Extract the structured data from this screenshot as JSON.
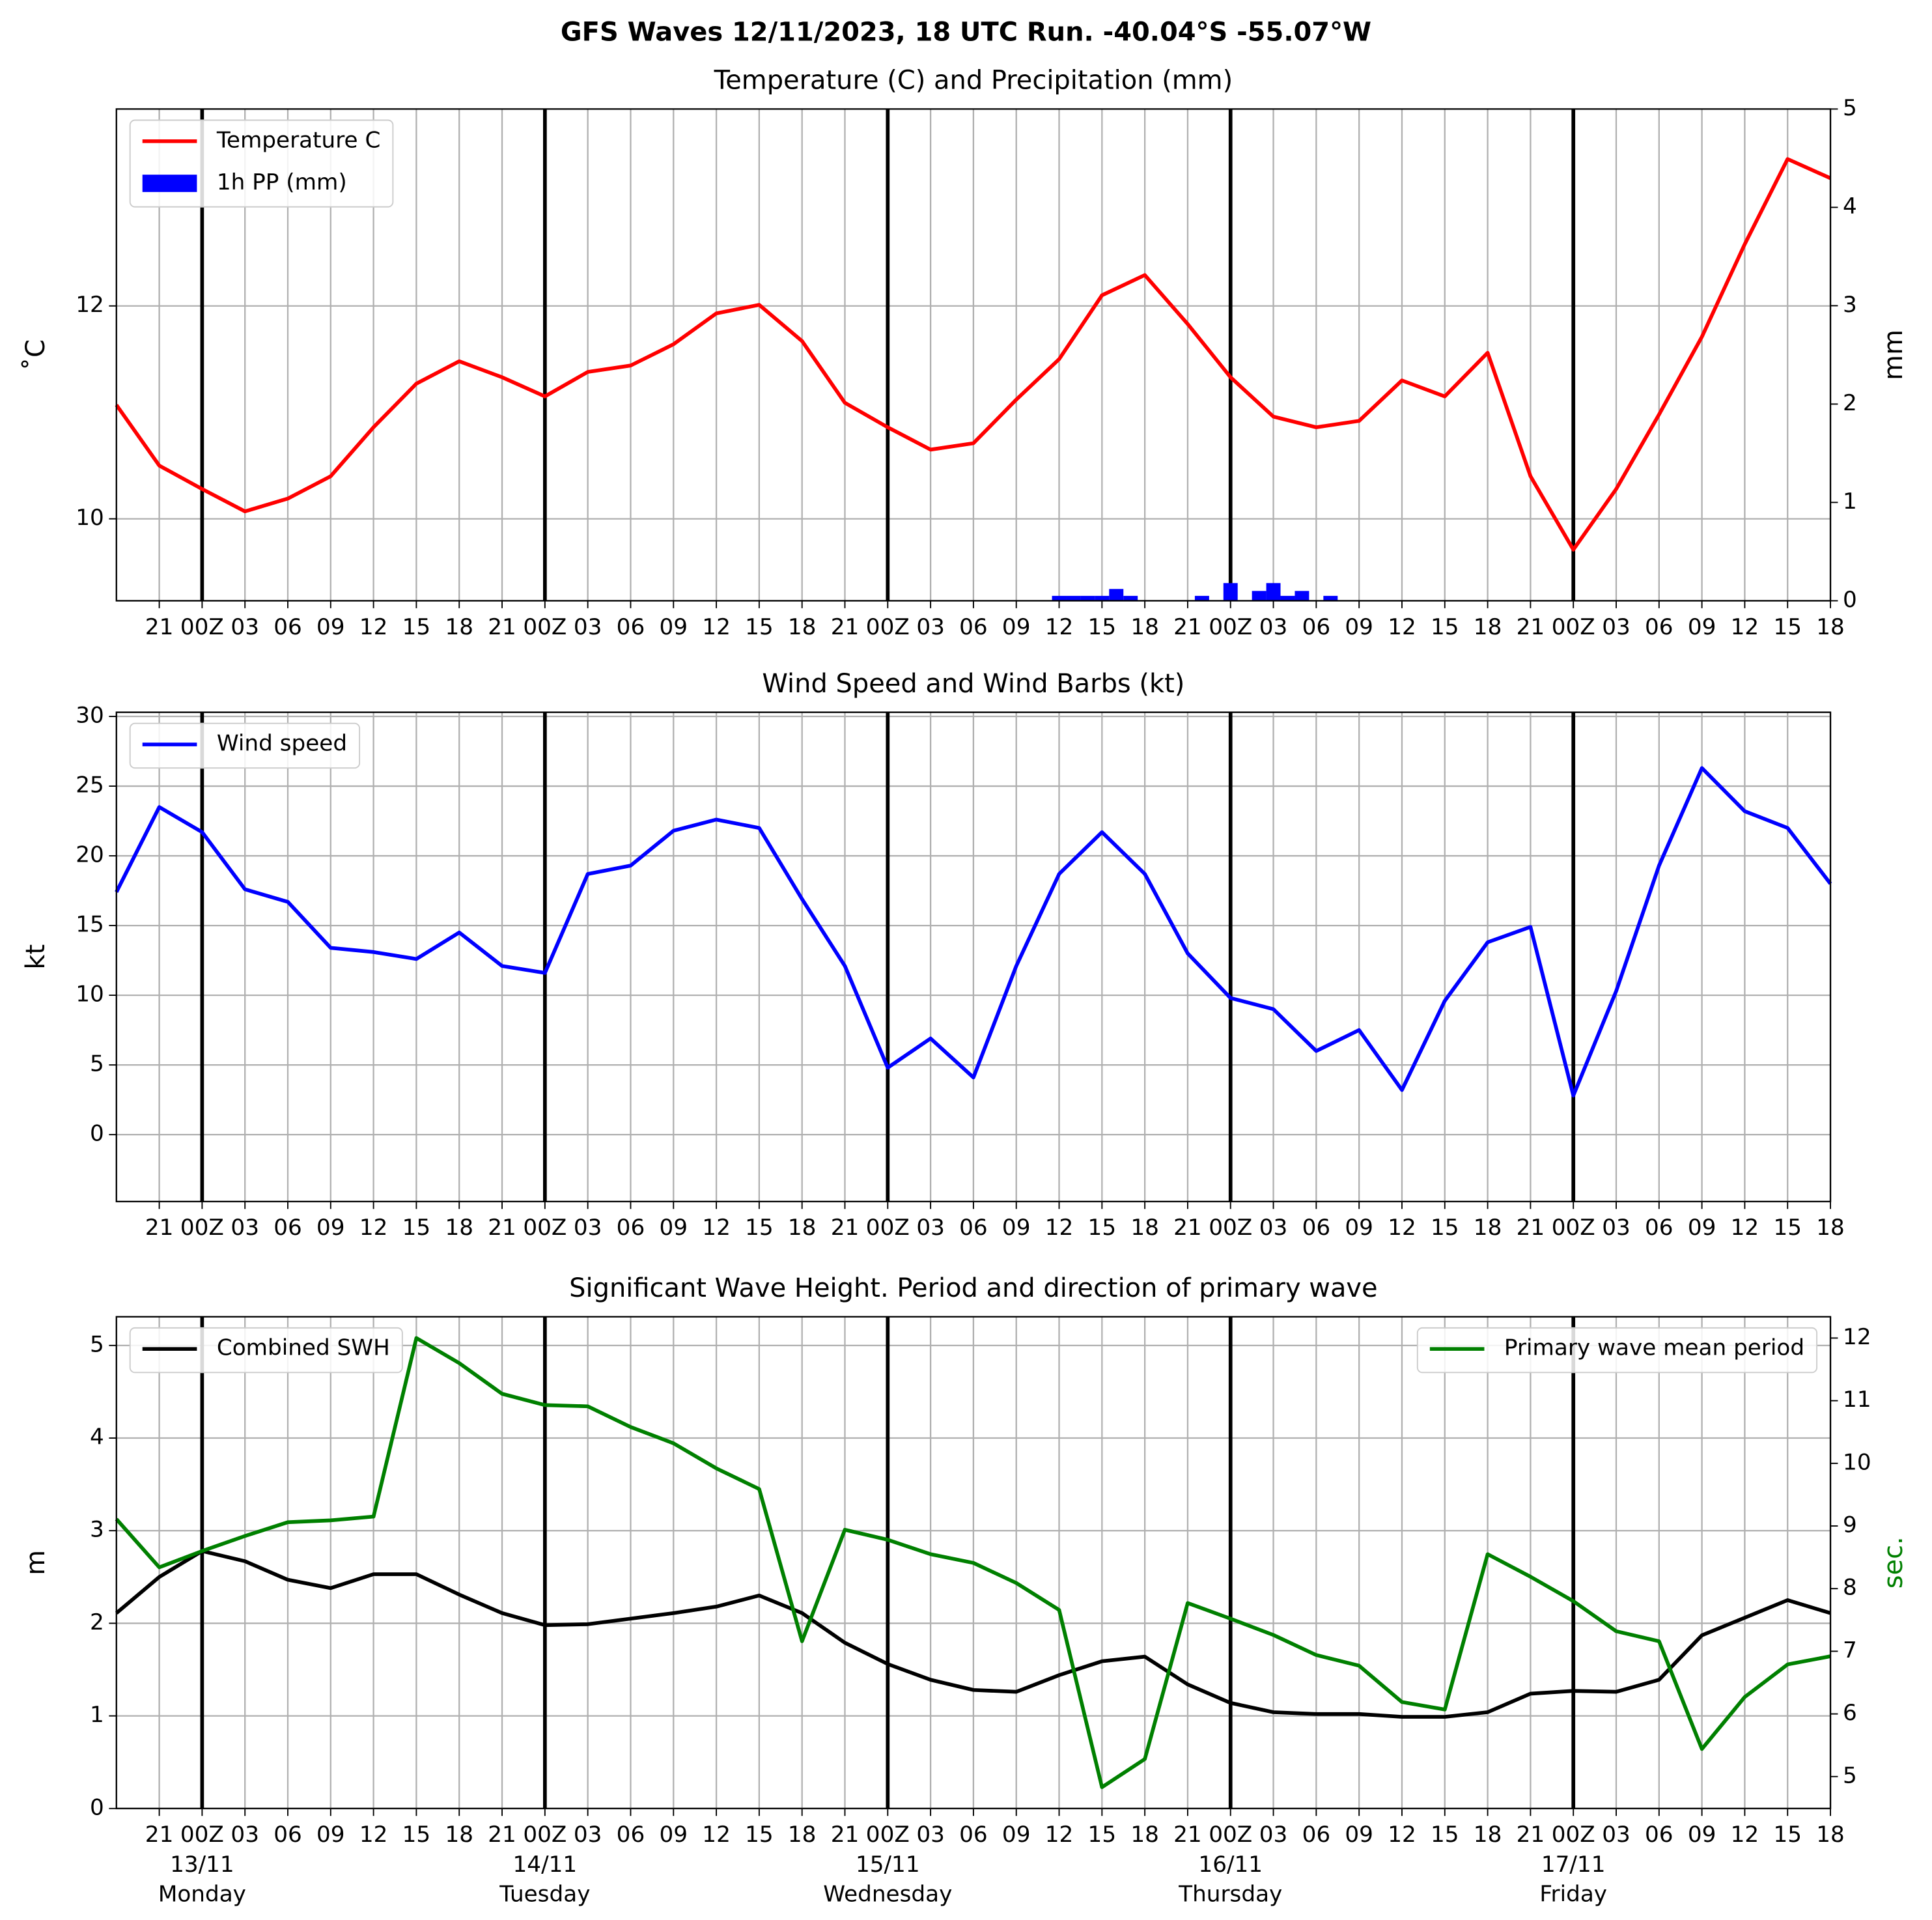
{
  "suptitle": "GFS Waves 12/11/2023, 18 UTC Run. -40.04°S -55.07°W",
  "chart_data": [
    {
      "type": "line",
      "title": "Temperature (C) and Precipitation (mm)",
      "ylabel": "˚C",
      "y2label": "mm",
      "xlim": [
        0,
        120
      ],
      "ylim": [
        9.23,
        13.85
      ],
      "yticks": [
        10,
        12
      ],
      "y2lim": [
        0,
        5
      ],
      "y2ticks": [
        0,
        1,
        2,
        3,
        4,
        5
      ],
      "grid": true,
      "legend": "upper left",
      "xticks": [
        {
          "value": 3,
          "label": "21"
        },
        {
          "value": 6,
          "label": "00Z"
        },
        {
          "value": 9,
          "label": "03"
        },
        {
          "value": 12,
          "label": "06"
        },
        {
          "value": 15,
          "label": "09"
        },
        {
          "value": 18,
          "label": "12"
        },
        {
          "value": 21,
          "label": "15"
        },
        {
          "value": 24,
          "label": "18"
        },
        {
          "value": 27,
          "label": "21"
        },
        {
          "value": 30,
          "label": "00Z"
        },
        {
          "value": 33,
          "label": "03"
        },
        {
          "value": 36,
          "label": "06"
        },
        {
          "value": 39,
          "label": "09"
        },
        {
          "value": 42,
          "label": "12"
        },
        {
          "value": 45,
          "label": "15"
        },
        {
          "value": 48,
          "label": "18"
        },
        {
          "value": 51,
          "label": "21"
        },
        {
          "value": 54,
          "label": "00Z"
        },
        {
          "value": 57,
          "label": "03"
        },
        {
          "value": 60,
          "label": "06"
        },
        {
          "value": 63,
          "label": "09"
        },
        {
          "value": 66,
          "label": "12"
        },
        {
          "value": 69,
          "label": "15"
        },
        {
          "value": 72,
          "label": "18"
        },
        {
          "value": 75,
          "label": "21"
        },
        {
          "value": 78,
          "label": "00Z"
        },
        {
          "value": 81,
          "label": "03"
        },
        {
          "value": 84,
          "label": "06"
        },
        {
          "value": 87,
          "label": "09"
        },
        {
          "value": 90,
          "label": "12"
        },
        {
          "value": 93,
          "label": "15"
        },
        {
          "value": 96,
          "label": "18"
        },
        {
          "value": 99,
          "label": "21"
        },
        {
          "value": 102,
          "label": "00Z"
        },
        {
          "value": 105,
          "label": "03"
        },
        {
          "value": 108,
          "label": "06"
        },
        {
          "value": 111,
          "label": "09"
        },
        {
          "value": 114,
          "label": "12"
        },
        {
          "value": 117,
          "label": "15"
        },
        {
          "value": 120,
          "label": "18"
        }
      ],
      "x": [
        0,
        3,
        6,
        9,
        12,
        15,
        18,
        21,
        24,
        27,
        30,
        33,
        36,
        39,
        42,
        45,
        48,
        51,
        54,
        57,
        60,
        63,
        66,
        69,
        72,
        75,
        78,
        81,
        84,
        87,
        90,
        93,
        96,
        99,
        102,
        105,
        108,
        111,
        114,
        117,
        120
      ],
      "series": [
        {
          "name": "Temperature C",
          "color": "#ff0000",
          "values": [
            11.07,
            10.5,
            10.28,
            10.07,
            10.19,
            10.4,
            10.86,
            11.27,
            11.48,
            11.33,
            11.15,
            11.38,
            11.44,
            11.64,
            11.93,
            12.01,
            11.67,
            11.09,
            10.86,
            10.65,
            10.71,
            11.12,
            11.5,
            12.1,
            12.29,
            11.83,
            11.33,
            10.96,
            10.86,
            10.92,
            11.3,
            11.15,
            11.56,
            10.4,
            9.71,
            10.28,
            10.98,
            11.71,
            12.58,
            13.38,
            13.2
          ]
        },
        {
          "name": "1h PP (mm)",
          "color": "#0000ff",
          "type": "bar",
          "axis": "y2",
          "x": [
            66,
            67,
            68,
            69,
            70,
            71,
            76,
            78,
            80,
            81,
            82,
            83,
            85
          ],
          "values": [
            0.05,
            0.05,
            0.05,
            0.05,
            0.12,
            0.05,
            0.05,
            0.18,
            0.1,
            0.18,
            0.05,
            0.1,
            0.05
          ]
        }
      ]
    },
    {
      "type": "line",
      "title": "Wind Speed and Wind Barbs (kt)",
      "ylabel": "kt",
      "xlim": [
        0,
        120
      ],
      "ylim": [
        -4.8,
        30.3
      ],
      "yticks": [
        0,
        5,
        10,
        15,
        20,
        25,
        30
      ],
      "grid": true,
      "legend": "upper left",
      "xticks": [
        {
          "value": 3,
          "label": "21"
        },
        {
          "value": 6,
          "label": "00Z"
        },
        {
          "value": 9,
          "label": "03"
        },
        {
          "value": 12,
          "label": "06"
        },
        {
          "value": 15,
          "label": "09"
        },
        {
          "value": 18,
          "label": "12"
        },
        {
          "value": 21,
          "label": "15"
        },
        {
          "value": 24,
          "label": "18"
        },
        {
          "value": 27,
          "label": "21"
        },
        {
          "value": 30,
          "label": "00Z"
        },
        {
          "value": 33,
          "label": "03"
        },
        {
          "value": 36,
          "label": "06"
        },
        {
          "value": 39,
          "label": "09"
        },
        {
          "value": 42,
          "label": "12"
        },
        {
          "value": 45,
          "label": "15"
        },
        {
          "value": 48,
          "label": "18"
        },
        {
          "value": 51,
          "label": "21"
        },
        {
          "value": 54,
          "label": "00Z"
        },
        {
          "value": 57,
          "label": "03"
        },
        {
          "value": 60,
          "label": "06"
        },
        {
          "value": 63,
          "label": "09"
        },
        {
          "value": 66,
          "label": "12"
        },
        {
          "value": 69,
          "label": "15"
        },
        {
          "value": 72,
          "label": "18"
        },
        {
          "value": 75,
          "label": "21"
        },
        {
          "value": 78,
          "label": "00Z"
        },
        {
          "value": 81,
          "label": "03"
        },
        {
          "value": 84,
          "label": "06"
        },
        {
          "value": 87,
          "label": "09"
        },
        {
          "value": 90,
          "label": "12"
        },
        {
          "value": 93,
          "label": "15"
        },
        {
          "value": 96,
          "label": "18"
        },
        {
          "value": 99,
          "label": "21"
        },
        {
          "value": 102,
          "label": "00Z"
        },
        {
          "value": 105,
          "label": "03"
        },
        {
          "value": 108,
          "label": "06"
        },
        {
          "value": 111,
          "label": "09"
        },
        {
          "value": 114,
          "label": "12"
        },
        {
          "value": 117,
          "label": "15"
        },
        {
          "value": 120,
          "label": "18"
        }
      ],
      "x": [
        0,
        3,
        6,
        9,
        12,
        15,
        18,
        21,
        24,
        27,
        30,
        33,
        36,
        39,
        42,
        45,
        48,
        51,
        54,
        57,
        60,
        63,
        66,
        69,
        72,
        75,
        78,
        81,
        84,
        87,
        90,
        93,
        96,
        99,
        102,
        105,
        108,
        111,
        114,
        117,
        120
      ],
      "series": [
        {
          "name": "Wind speed",
          "color": "#0000ff",
          "values": [
            17.4,
            23.5,
            21.7,
            17.6,
            16.7,
            13.4,
            13.1,
            12.6,
            14.5,
            12.1,
            11.6,
            18.7,
            19.3,
            21.8,
            22.6,
            22,
            16.9,
            12.1,
            4.8,
            6.9,
            4.1,
            12.1,
            18.7,
            21.7,
            18.7,
            13,
            9.8,
            9,
            6,
            7.5,
            3.2,
            9.6,
            13.8,
            14.9,
            2.8,
            10.3,
            19.3,
            26.3,
            23.2,
            22,
            18
          ]
        }
      ]
    },
    {
      "type": "line",
      "title": "Significant Wave Height. Period and direction of primary wave",
      "ylabel": "m",
      "y2label": "sec.",
      "y2label_color": "#008000",
      "xlim": [
        0,
        120
      ],
      "ylim": [
        0,
        5.31
      ],
      "yticks": [
        0,
        1,
        2,
        3,
        4,
        5
      ],
      "y2lim": [
        4.49,
        12.34
      ],
      "y2ticks": [
        5,
        6,
        7,
        8,
        9,
        10,
        11,
        12
      ],
      "grid": true,
      "xticks": [
        {
          "value": 3,
          "label": "21"
        },
        {
          "value": 6,
          "label": "00Z"
        },
        {
          "value": 9,
          "label": "03"
        },
        {
          "value": 12,
          "label": "06"
        },
        {
          "value": 15,
          "label": "09"
        },
        {
          "value": 18,
          "label": "12"
        },
        {
          "value": 21,
          "label": "15"
        },
        {
          "value": 24,
          "label": "18"
        },
        {
          "value": 27,
          "label": "21"
        },
        {
          "value": 30,
          "label": "00Z"
        },
        {
          "value": 33,
          "label": "03"
        },
        {
          "value": 36,
          "label": "06"
        },
        {
          "value": 39,
          "label": "09"
        },
        {
          "value": 42,
          "label": "12"
        },
        {
          "value": 45,
          "label": "15"
        },
        {
          "value": 48,
          "label": "18"
        },
        {
          "value": 51,
          "label": "21"
        },
        {
          "value": 54,
          "label": "00Z"
        },
        {
          "value": 57,
          "label": "03"
        },
        {
          "value": 60,
          "label": "06"
        },
        {
          "value": 63,
          "label": "09"
        },
        {
          "value": 66,
          "label": "12"
        },
        {
          "value": 69,
          "label": "15"
        },
        {
          "value": 72,
          "label": "18"
        },
        {
          "value": 75,
          "label": "21"
        },
        {
          "value": 78,
          "label": "00Z"
        },
        {
          "value": 81,
          "label": "03"
        },
        {
          "value": 84,
          "label": "06"
        },
        {
          "value": 87,
          "label": "09"
        },
        {
          "value": 90,
          "label": "12"
        },
        {
          "value": 93,
          "label": "15"
        },
        {
          "value": 96,
          "label": "18"
        },
        {
          "value": 99,
          "label": "21"
        },
        {
          "value": 102,
          "label": "00Z"
        },
        {
          "value": 105,
          "label": "03"
        },
        {
          "value": 108,
          "label": "06"
        },
        {
          "value": 111,
          "label": "09"
        },
        {
          "value": 114,
          "label": "12"
        },
        {
          "value": 117,
          "label": "15"
        },
        {
          "value": 120,
          "label": "18"
        }
      ],
      "x": [
        0,
        3,
        6,
        9,
        12,
        15,
        18,
        21,
        24,
        27,
        30,
        33,
        36,
        39,
        42,
        45,
        48,
        51,
        54,
        57,
        60,
        63,
        66,
        69,
        72,
        75,
        78,
        81,
        84,
        87,
        90,
        93,
        96,
        99,
        102,
        105,
        108,
        111,
        114,
        117,
        120
      ],
      "dates": [
        "13/11",
        "14/11",
        "15/11",
        "16/11",
        "17/11"
      ],
      "weekdays": [
        "Monday",
        "Tuesday",
        "Wednesday",
        "Thursday",
        "Friday"
      ],
      "date_x": [
        6,
        30,
        54,
        78,
        102
      ],
      "series": [
        {
          "name": "Combined SWH",
          "color": "#000000",
          "legend": "upper left",
          "values": [
            2.11,
            2.5,
            2.78,
            2.67,
            2.47,
            2.38,
            2.53,
            2.53,
            2.31,
            2.11,
            1.98,
            1.99,
            2.05,
            2.11,
            2.18,
            2.3,
            2.11,
            1.79,
            1.56,
            1.39,
            1.28,
            1.26,
            1.44,
            1.59,
            1.64,
            1.34,
            1.14,
            1.04,
            1.02,
            1.02,
            0.99,
            0.99,
            1.04,
            1.24,
            1.27,
            1.26,
            1.39,
            1.87,
            2.06,
            2.25,
            2.11
          ]
        },
        {
          "name": "Primary wave mean period",
          "color": "#008000",
          "axis": "y2",
          "legend": "upper right",
          "values": [
            9.11,
            8.34,
            8.6,
            8.84,
            9.06,
            9.09,
            9.15,
            12,
            11.6,
            11.11,
            10.93,
            10.91,
            10.58,
            10.32,
            9.92,
            9.59,
            7.16,
            8.94,
            8.78,
            8.55,
            8.41,
            8.09,
            7.66,
            4.83,
            5.28,
            7.77,
            7.52,
            7.26,
            6.94,
            6.77,
            6.19,
            6.07,
            8.55,
            8.19,
            7.8,
            7.32,
            7.16,
            5.44,
            6.27,
            6.79,
            6.92
          ]
        }
      ]
    }
  ]
}
